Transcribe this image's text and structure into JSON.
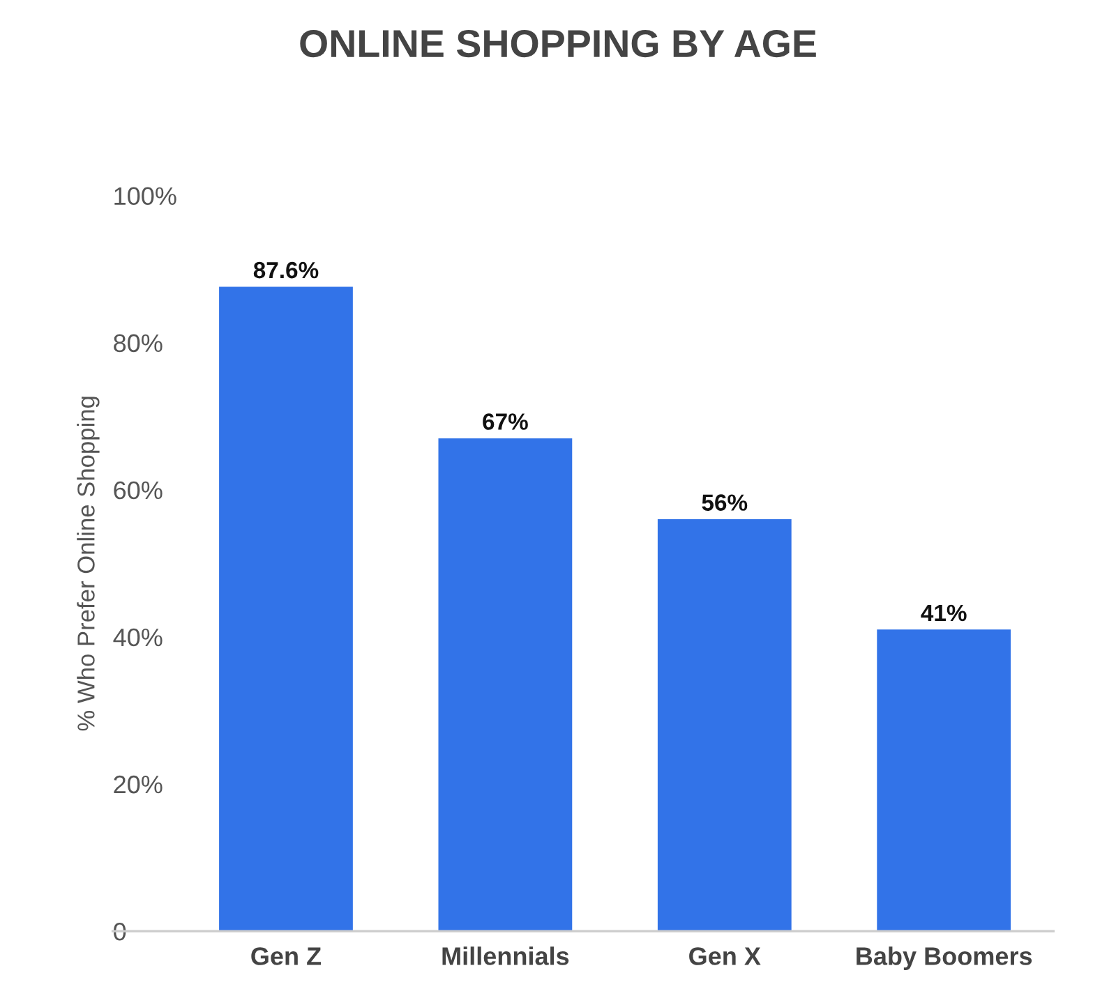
{
  "chart_data": {
    "type": "bar",
    "title": "ONLINE SHOPPING BY AGE",
    "ylabel": "% Who Prefer Online Shopping",
    "categories": [
      "Gen Z",
      "Millennials",
      "Gen X",
      "Baby Boomers"
    ],
    "values": [
      87.6,
      67,
      56,
      41
    ],
    "value_labels": [
      "87.6%",
      "67%",
      "56%",
      "41%"
    ],
    "color": "#3273e8",
    "ylim": [
      0,
      100
    ],
    "yticks": [
      0,
      {
        "value": 20,
        "label": "20%"
      },
      {
        "value": 40,
        "label": "40%"
      },
      {
        "value": 60,
        "label": "60%"
      },
      {
        "value": 80,
        "label": "80%"
      },
      {
        "value": 100,
        "label": "100%"
      }
    ]
  }
}
